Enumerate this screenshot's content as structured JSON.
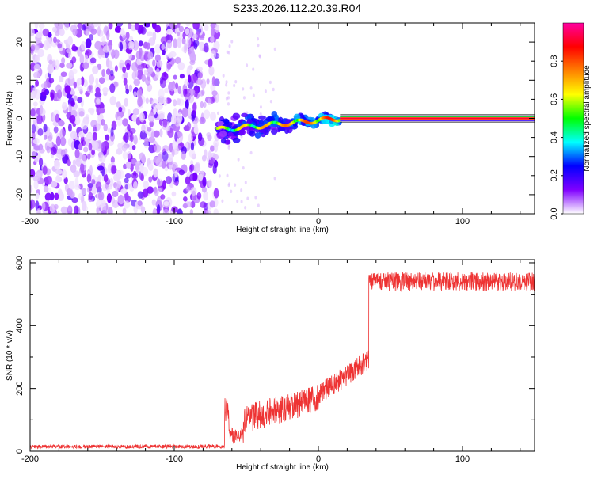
{
  "title": "S233.2026.112.20.39.R04",
  "chart_data": [
    {
      "type": "heatmap",
      "xlabel": "Height of straight line (km)",
      "ylabel": "Frequency (Hz)",
      "xlim": [
        -200,
        150
      ],
      "ylim": [
        -25,
        25
      ],
      "x_ticks": [
        -200,
        -100,
        0,
        100
      ],
      "x_tick_labels": [
        "-200",
        "-100",
        "0",
        "100"
      ],
      "y_ticks": [
        -20,
        -10,
        0,
        10,
        20
      ],
      "y_tick_labels": [
        "-20",
        "-10",
        "0",
        "10",
        "20"
      ],
      "grid": false,
      "colorbar": {
        "label": "Normalized spectral amplitude",
        "range": [
          0,
          1
        ],
        "ticks": [
          0.0,
          0.2,
          0.4,
          0.6,
          0.8
        ],
        "tick_labels": [
          "0.0",
          "0.2",
          "0.4",
          "0.6",
          "0.8"
        ],
        "colors": [
          "#ffffff",
          "#8000ff",
          "#0000ff",
          "#00ffff",
          "#00ff00",
          "#ffff00",
          "#ff8000",
          "#ff0000",
          "#ff00a0"
        ]
      },
      "features": [
        {
          "region": "noise",
          "x_range": [
            -200,
            -70
          ],
          "frequency_range": [
            -25,
            25
          ],
          "amplitude": "low"
        },
        {
          "region": "signal_emergence",
          "x_range": [
            -70,
            15
          ],
          "frequency_start": -3,
          "frequency_end": 0,
          "amplitude": "medium"
        },
        {
          "region": "steady_carrier",
          "x_range": [
            15,
            150
          ],
          "frequency": 0,
          "amplitude": "high"
        }
      ]
    },
    {
      "type": "line",
      "xlabel": "Height of straight line (km)",
      "ylabel": "SNR (10 * v/v)",
      "xlim": [
        -200,
        150
      ],
      "ylim": [
        0,
        610
      ],
      "x_ticks": [
        -200,
        -100,
        0,
        100
      ],
      "x_tick_labels": [
        "-200",
        "-100",
        "0",
        "100"
      ],
      "y_ticks": [
        0,
        200,
        400,
        600
      ],
      "y_tick_labels": [
        "0",
        "200",
        "400",
        "600"
      ],
      "grid": false,
      "color": "#ee3333",
      "segments": [
        {
          "x_range": [
            -200,
            -65
          ],
          "mean": 15,
          "noise": 6
        },
        {
          "x_range": [
            -65,
            -62
          ],
          "mean": 120,
          "noise": 50
        },
        {
          "x_range": [
            -62,
            -52
          ],
          "mean": 50,
          "noise": 25
        },
        {
          "x_range": [
            -52,
            0
          ],
          "mean_start": 100,
          "mean_end": 170,
          "noise": 45
        },
        {
          "x_range": [
            0,
            35
          ],
          "mean_start": 180,
          "mean_end": 290,
          "noise": 35
        },
        {
          "x_range": [
            35,
            150
          ],
          "mean": 540,
          "noise": 30
        }
      ]
    }
  ]
}
